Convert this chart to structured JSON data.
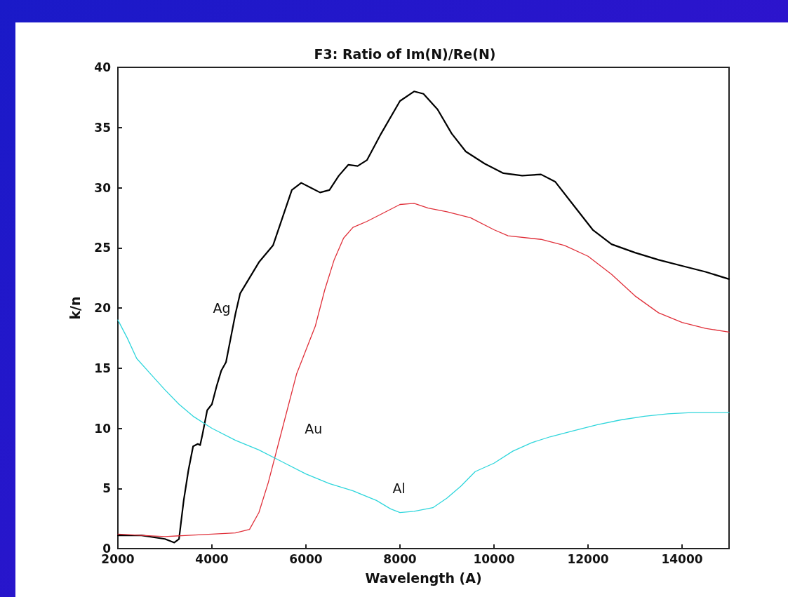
{
  "chart_data": {
    "type": "line",
    "title": "F3: Ratio of Im(N)/Re(N)",
    "xlabel": "Wavelength (A)",
    "ylabel": "k/n",
    "xlim": [
      2000,
      15000
    ],
    "xticks": [
      2000,
      4000,
      6000,
      8000,
      10000,
      12000,
      14000
    ],
    "ylim": [
      0,
      40
    ],
    "yticks": [
      0,
      5,
      10,
      15,
      20,
      25,
      30,
      35,
      40
    ],
    "grid": false,
    "marker": "none",
    "line_style": "solid",
    "series": [
      {
        "name": "Ag",
        "color": "#000000",
        "x": [
          2000,
          2500,
          3000,
          3200,
          3300,
          3400,
          3500,
          3600,
          3700,
          3750,
          3800,
          3900,
          4000,
          4100,
          4200,
          4300,
          4400,
          4500,
          4600,
          4800,
          5000,
          5300,
          5500,
          5700,
          5900,
          6100,
          6300,
          6500,
          6700,
          6900,
          7100,
          7300,
          7600,
          8000,
          8300,
          8500,
          8800,
          9100,
          9400,
          9800,
          10200,
          10600,
          11000,
          11300,
          11700,
          12100,
          12500,
          13000,
          13500,
          14000,
          14500,
          15000
        ],
        "values": [
          1.1,
          1.1,
          0.8,
          0.5,
          0.8,
          4,
          6.5,
          8.5,
          8.7,
          8.6,
          9.5,
          11.5,
          12,
          13.5,
          14.8,
          15.5,
          17.5,
          19.5,
          21.2,
          22.5,
          23.8,
          25.2,
          27.5,
          29.8,
          30.4,
          30,
          29.6,
          29.8,
          31,
          31.9,
          31.8,
          32.3,
          34.5,
          37.2,
          38,
          37.8,
          36.5,
          34.5,
          33,
          32,
          31.2,
          31,
          31.1,
          30.5,
          28.5,
          26.5,
          25.3,
          24.6,
          24,
          23.5,
          23,
          22.4
        ]
      },
      {
        "name": "Au",
        "color": "#e0303a",
        "x": [
          2000,
          2500,
          3000,
          3500,
          4000,
          4500,
          4800,
          5000,
          5200,
          5400,
          5600,
          5800,
          6000,
          6200,
          6400,
          6600,
          6800,
          7000,
          7300,
          7600,
          8000,
          8300,
          8600,
          9000,
          9500,
          10000,
          10300,
          11000,
          11500,
          12000,
          12500,
          13000,
          13500,
          14000,
          14500,
          15000
        ],
        "values": [
          1.2,
          1.1,
          1.0,
          1.1,
          1.2,
          1.3,
          1.6,
          3,
          5.5,
          8.5,
          11.5,
          14.5,
          16.5,
          18.5,
          21.5,
          24,
          25.8,
          26.7,
          27.2,
          27.8,
          28.6,
          28.7,
          28.3,
          28,
          27.5,
          26.5,
          26,
          25.7,
          25.2,
          24.3,
          22.8,
          21,
          19.6,
          18.8,
          18.3,
          18
        ]
      },
      {
        "name": "Al",
        "color": "#2fd6dc",
        "x": [
          2000,
          2200,
          2400,
          2700,
          3000,
          3300,
          3600,
          4000,
          4500,
          5000,
          5500,
          6000,
          6500,
          7000,
          7500,
          7800,
          8000,
          8300,
          8700,
          9000,
          9300,
          9600,
          10000,
          10400,
          10800,
          11200,
          11700,
          12200,
          12700,
          13200,
          13700,
          14200,
          15000
        ],
        "values": [
          19,
          17.5,
          15.8,
          14.5,
          13.2,
          12,
          11,
          10,
          9,
          8.2,
          7.2,
          6.2,
          5.4,
          4.8,
          4,
          3.3,
          3,
          3.1,
          3.4,
          4.2,
          5.2,
          6.4,
          7.1,
          8.1,
          8.8,
          9.3,
          9.8,
          10.3,
          10.7,
          11,
          11.2,
          11.3,
          11.3
        ]
      }
    ]
  }
}
